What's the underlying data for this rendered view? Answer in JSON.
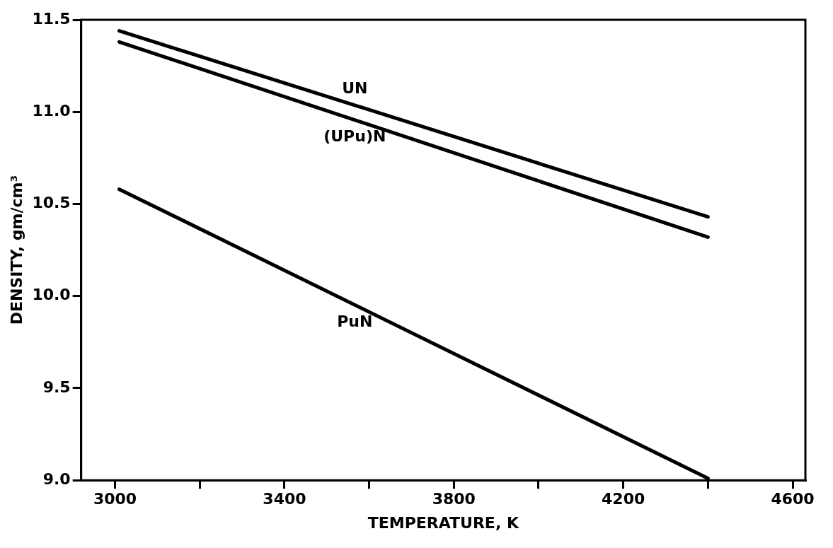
{
  "chart_data": {
    "type": "line",
    "xlabel": "TEMPERATURE, K",
    "ylabel": "DENSITY, gm/cm³",
    "xlim": [
      2920,
      4630
    ],
    "xticks": [
      3000,
      {
        "value": 3200,
        "label": null
      },
      3400,
      {
        "value": 3600,
        "label": null
      },
      3800,
      {
        "value": 4000,
        "label": null
      },
      4200,
      {
        "value": 4400,
        "label": null
      },
      4600
    ],
    "ylim": [
      9,
      11.5
    ],
    "yticks": [
      {
        "value": 9,
        "label": "9.0"
      },
      9.5,
      {
        "value": 10,
        "label": "10.0"
      },
      10.5,
      {
        "value": 11,
        "label": "11.0"
      },
      11.5
    ],
    "grid": false,
    "legend": false,
    "marker": "none",
    "line_style": "solid",
    "x": [
      3010,
      4400
    ],
    "series": [
      {
        "name": "UN",
        "color": "#000000",
        "values": [
          11.44,
          10.43
        ]
      },
      {
        "name": "(UPu)N",
        "color": "#000000",
        "values": [
          11.38,
          10.32
        ]
      },
      {
        "name": "PuN",
        "color": "#000000",
        "values": [
          10.58,
          9.01
        ]
      }
    ]
  }
}
